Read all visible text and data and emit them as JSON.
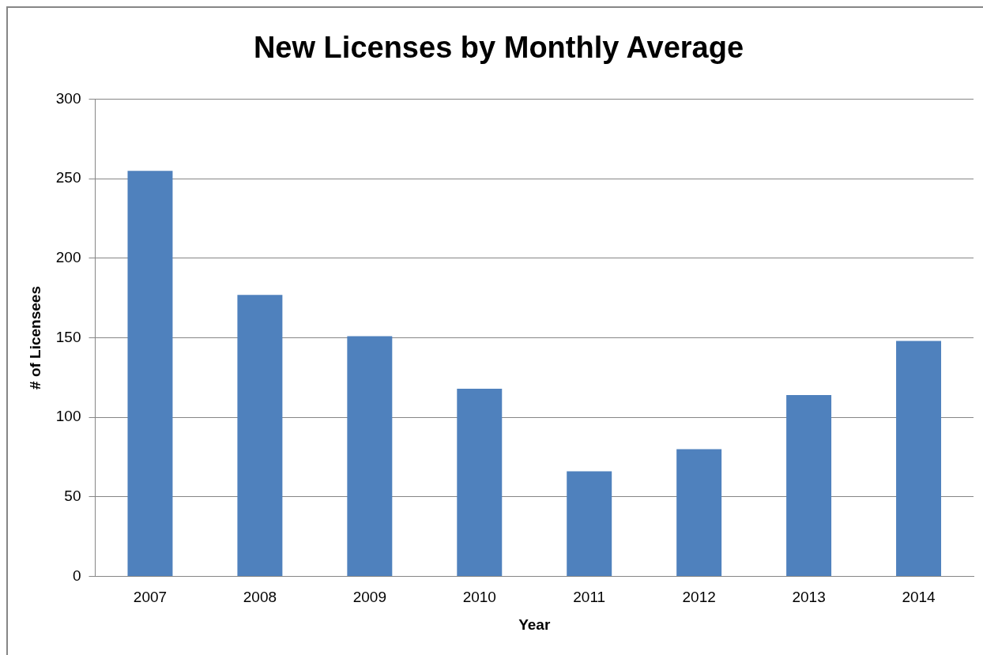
{
  "chart_data": {
    "type": "bar",
    "title": "New Licenses by Monthly Average",
    "xlabel": "Year",
    "ylabel": "# of Licensees",
    "categories": [
      "2007",
      "2008",
      "2009",
      "2010",
      "2011",
      "2012",
      "2013",
      "2014"
    ],
    "values": [
      255,
      177,
      151,
      118,
      66,
      80,
      114,
      148
    ],
    "color": "#4f81bd",
    "ylim": [
      0,
      300
    ],
    "yticks": [
      0,
      50,
      100,
      150,
      200,
      250,
      300
    ],
    "grid": "y"
  }
}
